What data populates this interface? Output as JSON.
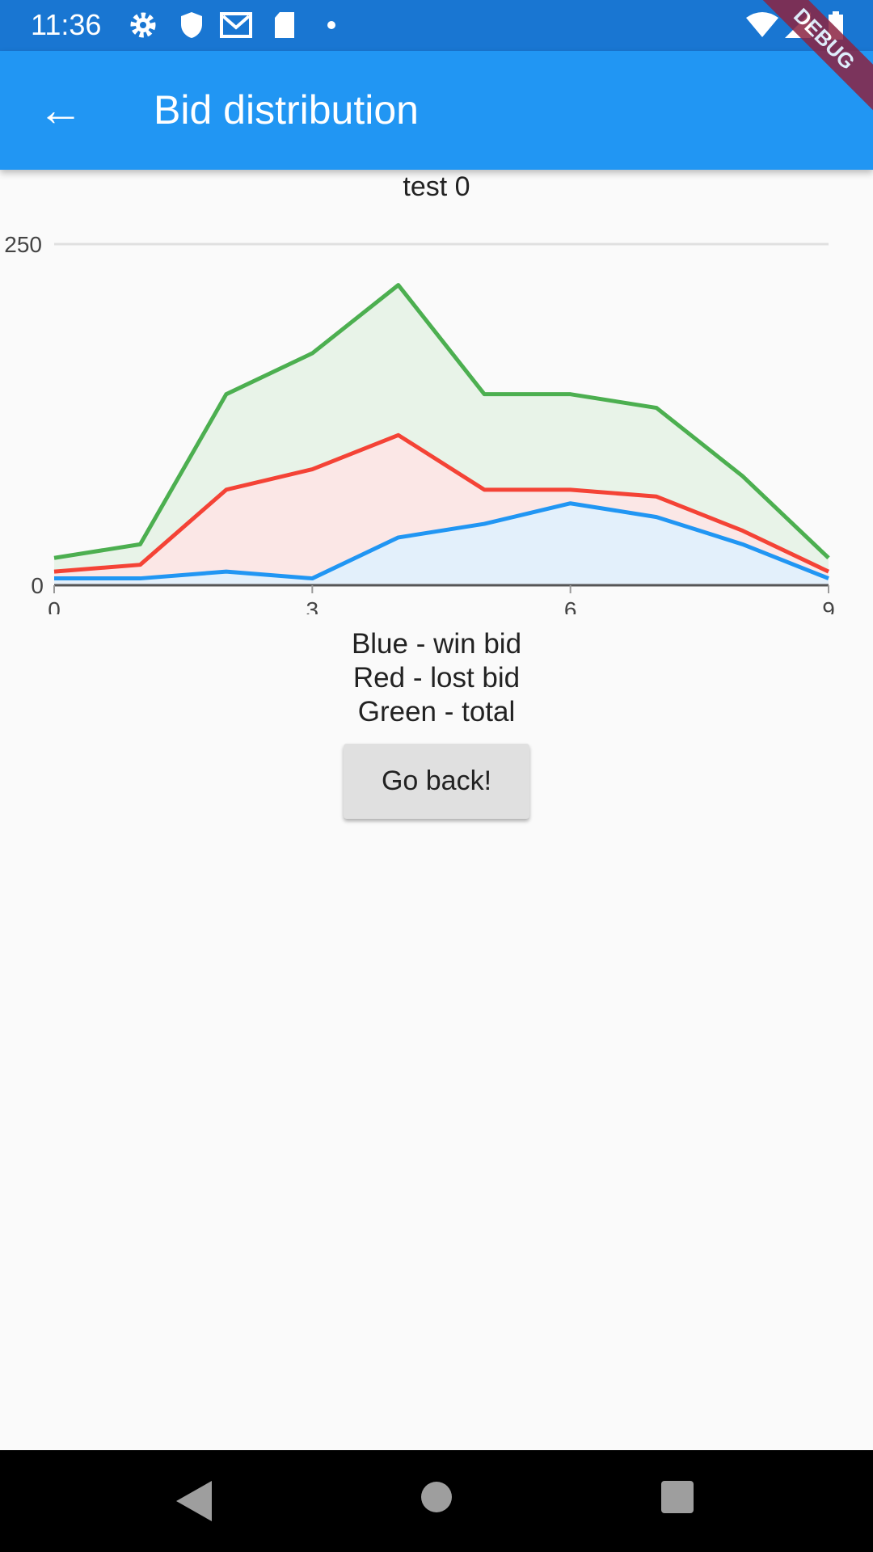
{
  "status_bar": {
    "time": "11:36",
    "icons": [
      "gear-icon",
      "shield-icon",
      "mail-icon",
      "sd-card-icon",
      "dot-icon",
      "wifi-icon",
      "signal-icon",
      "battery-icon"
    ]
  },
  "app_bar": {
    "title": "Bid distribution",
    "back_icon": "arrow-back-icon",
    "debug_banner": "DEBUG"
  },
  "chart_data": {
    "type": "area",
    "title": "test 0",
    "x": [
      0,
      1,
      2,
      3,
      4,
      5,
      6,
      7,
      8,
      9
    ],
    "x_ticks": [
      "0",
      "3",
      "6",
      "9"
    ],
    "y_ticks": [
      "0",
      "250"
    ],
    "ylim": [
      0,
      250
    ],
    "xlim": [
      0,
      9
    ],
    "grid": true,
    "series": [
      {
        "color": "#4CAF50",
        "fill": "#E8F3E8",
        "values": [
          20,
          30,
          140,
          170,
          220,
          140,
          140,
          130,
          80,
          20
        ]
      },
      {
        "color": "#F44336",
        "fill": "#FBE7E6",
        "values": [
          10,
          15,
          70,
          85,
          110,
          70,
          70,
          65,
          40,
          10
        ]
      },
      {
        "color": "#2196F3",
        "fill": "#E3F0FB",
        "values": [
          5,
          5,
          10,
          5,
          35,
          45,
          60,
          50,
          30,
          5
        ]
      }
    ]
  },
  "legend": [
    "Blue - win bid",
    "Red - lost bid",
    "Green - total"
  ],
  "button": {
    "label": "Go back!"
  }
}
